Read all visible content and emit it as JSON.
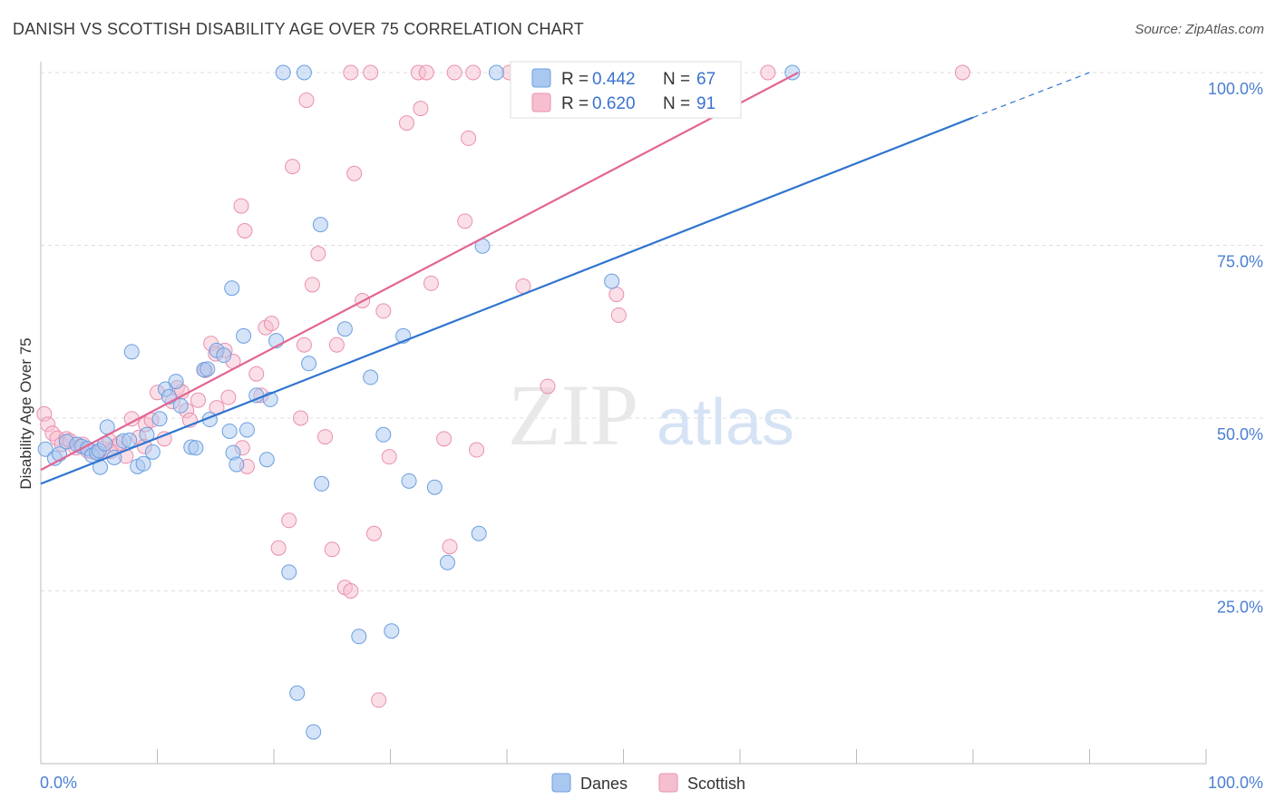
{
  "title": "DANISH VS SCOTTISH DISABILITY AGE OVER 75 CORRELATION CHART",
  "source": "Source: ZipAtlas.com",
  "watermark": {
    "zip": "ZIP",
    "atlas": "atlas"
  },
  "colors": {
    "danes_fill": "#a9c8f0",
    "danes_stroke": "#6a9fe0",
    "danes_line": "#2f74d0",
    "scottish_fill": "#f6bfd0",
    "scottish_stroke": "#eb8fae",
    "scottish_line": "#e36592",
    "axis_text": "#4a7fd4",
    "grid": "#dddddd"
  },
  "legend_stats": {
    "r_label": "R =",
    "n_label": "N =",
    "rows": [
      {
        "r": "0.442",
        "n": "67"
      },
      {
        "r": "0.620",
        "n": "91"
      }
    ]
  },
  "chart_data": {
    "type": "scatter",
    "title": "DANISH VS SCOTTISH DISABILITY AGE OVER 75 CORRELATION CHART",
    "xlabel": "",
    "ylabel": "Disability Age Over 75",
    "xlim": [
      0,
      100
    ],
    "ylim": [
      0,
      100
    ],
    "x_tick_labels": [
      "0.0%",
      "100.0%"
    ],
    "y_ticks": [
      25,
      50,
      75,
      100
    ],
    "y_tick_labels": [
      "25.0%",
      "50.0%",
      "75.0%",
      "100.0%"
    ],
    "grid": true,
    "legend_position": "bottom",
    "series": [
      {
        "name": "Danes",
        "trend": {
          "x0": 0,
          "y0": 40.5,
          "x1": 80,
          "y1": 93.5,
          "dash_to_x": 90,
          "dash_to_y": 100
        },
        "points": [
          [
            0.4,
            45.5
          ],
          [
            1.2,
            44.2
          ],
          [
            1.6,
            44.8
          ],
          [
            2.2,
            46.6
          ],
          [
            3.1,
            46.2
          ],
          [
            3.5,
            45.9
          ],
          [
            4.0,
            45.6
          ],
          [
            4.4,
            44.6
          ],
          [
            4.8,
            45.0
          ],
          [
            5.0,
            45.3
          ],
          [
            5.1,
            42.9
          ],
          [
            5.5,
            46.3
          ],
          [
            5.7,
            48.7
          ],
          [
            6.3,
            44.3
          ],
          [
            7.1,
            46.7
          ],
          [
            7.6,
            46.8
          ],
          [
            7.8,
            59.6
          ],
          [
            8.3,
            43.0
          ],
          [
            8.8,
            43.4
          ],
          [
            9.1,
            47.6
          ],
          [
            9.6,
            45.1
          ],
          [
            10.2,
            49.9
          ],
          [
            10.7,
            54.2
          ],
          [
            11.0,
            53.1
          ],
          [
            11.6,
            55.3
          ],
          [
            12.0,
            51.8
          ],
          [
            12.9,
            45.8
          ],
          [
            13.3,
            45.7
          ],
          [
            14.0,
            57.0
          ],
          [
            14.5,
            49.8
          ],
          [
            15.1,
            59.8
          ],
          [
            15.7,
            59.1
          ],
          [
            16.2,
            48.1
          ],
          [
            16.5,
            45.0
          ],
          [
            16.8,
            43.3
          ],
          [
            17.4,
            61.9
          ],
          [
            17.7,
            48.3
          ],
          [
            18.5,
            53.3
          ],
          [
            19.4,
            44.0
          ],
          [
            16.4,
            68.8
          ],
          [
            20.2,
            61.2
          ],
          [
            19.7,
            52.7
          ],
          [
            21.3,
            27.7
          ],
          [
            22.0,
            10.2
          ],
          [
            23.4,
            4.6
          ],
          [
            24.0,
            78.0
          ],
          [
            24.1,
            40.5
          ],
          [
            26.1,
            62.9
          ],
          [
            27.3,
            18.4
          ],
          [
            28.3,
            55.9
          ],
          [
            29.4,
            47.6
          ],
          [
            30.1,
            19.2
          ],
          [
            31.1,
            61.9
          ],
          [
            31.6,
            40.9
          ],
          [
            33.8,
            40.0
          ],
          [
            34.9,
            29.1
          ],
          [
            37.6,
            33.3
          ],
          [
            37.9,
            74.9
          ],
          [
            49.0,
            69.8
          ],
          [
            20.8,
            100.0
          ],
          [
            22.6,
            100.0
          ],
          [
            39.1,
            100.0
          ],
          [
            43.0,
            100.0
          ],
          [
            46.4,
            100.0
          ],
          [
            64.5,
            100.0
          ],
          [
            14.3,
            57.1
          ],
          [
            23.0,
            57.9
          ]
        ]
      },
      {
        "name": "Scottish",
        "trend": {
          "x0": 0,
          "y0": 42.5,
          "x1": 65,
          "y1": 100
        },
        "points": [
          [
            0.3,
            50.6
          ],
          [
            0.6,
            49.1
          ],
          [
            1.0,
            47.8
          ],
          [
            1.4,
            47.1
          ],
          [
            1.8,
            46.2
          ],
          [
            2.2,
            47.0
          ],
          [
            2.5,
            46.7
          ],
          [
            3.0,
            45.7
          ],
          [
            3.6,
            46.2
          ],
          [
            4.0,
            45.3
          ],
          [
            4.4,
            45.2
          ],
          [
            4.9,
            44.9
          ],
          [
            5.3,
            45.6
          ],
          [
            5.9,
            46.7
          ],
          [
            6.4,
            45.9
          ],
          [
            6.8,
            46.4
          ],
          [
            7.3,
            44.5
          ],
          [
            7.8,
            49.9
          ],
          [
            8.4,
            47.2
          ],
          [
            9.0,
            49.1
          ],
          [
            9.5,
            49.7
          ],
          [
            10.0,
            53.7
          ],
          [
            10.6,
            47.0
          ],
          [
            11.3,
            52.4
          ],
          [
            11.7,
            54.4
          ],
          [
            12.5,
            51.1
          ],
          [
            12.8,
            49.7
          ],
          [
            13.5,
            52.6
          ],
          [
            14.1,
            56.9
          ],
          [
            14.6,
            60.8
          ],
          [
            15.1,
            51.5
          ],
          [
            15.8,
            59.8
          ],
          [
            16.1,
            53.0
          ],
          [
            16.5,
            58.2
          ],
          [
            17.3,
            45.7
          ],
          [
            17.7,
            43.0
          ],
          [
            18.5,
            56.4
          ],
          [
            18.9,
            53.3
          ],
          [
            19.3,
            63.1
          ],
          [
            19.8,
            63.7
          ],
          [
            17.5,
            77.1
          ],
          [
            17.2,
            80.7
          ],
          [
            20.4,
            31.2
          ],
          [
            21.3,
            35.2
          ],
          [
            22.3,
            50.0
          ],
          [
            22.6,
            60.6
          ],
          [
            23.3,
            69.3
          ],
          [
            23.8,
            73.8
          ],
          [
            24.4,
            47.3
          ],
          [
            25.0,
            31.0
          ],
          [
            25.4,
            60.6
          ],
          [
            26.1,
            25.5
          ],
          [
            26.6,
            25.0
          ],
          [
            26.9,
            85.4
          ],
          [
            27.6,
            67.0
          ],
          [
            28.6,
            33.3
          ],
          [
            29.0,
            9.2
          ],
          [
            29.4,
            65.5
          ],
          [
            29.9,
            44.4
          ],
          [
            31.4,
            92.7
          ],
          [
            32.6,
            94.8
          ],
          [
            33.5,
            69.5
          ],
          [
            34.6,
            47.0
          ],
          [
            35.1,
            31.4
          ],
          [
            36.4,
            78.5
          ],
          [
            36.7,
            90.5
          ],
          [
            37.4,
            45.4
          ],
          [
            41.4,
            69.1
          ],
          [
            43.5,
            54.6
          ],
          [
            49.4,
            67.9
          ],
          [
            49.6,
            64.9
          ],
          [
            21.6,
            86.4
          ],
          [
            22.8,
            96.0
          ],
          [
            26.6,
            100.0
          ],
          [
            28.3,
            100.0
          ],
          [
            32.4,
            100.0
          ],
          [
            33.1,
            100.0
          ],
          [
            35.5,
            100.0
          ],
          [
            37.1,
            100.0
          ],
          [
            40.2,
            100.0
          ],
          [
            41.8,
            100.0
          ],
          [
            45.3,
            100.0
          ],
          [
            49.1,
            100.0
          ],
          [
            52.5,
            100.0
          ],
          [
            56.2,
            100.0
          ],
          [
            62.4,
            100.0
          ],
          [
            79.1,
            100.0
          ],
          [
            6.0,
            45.2
          ],
          [
            8.9,
            45.9
          ],
          [
            12.1,
            53.8
          ],
          [
            15.0,
            59.3
          ]
        ]
      }
    ]
  }
}
